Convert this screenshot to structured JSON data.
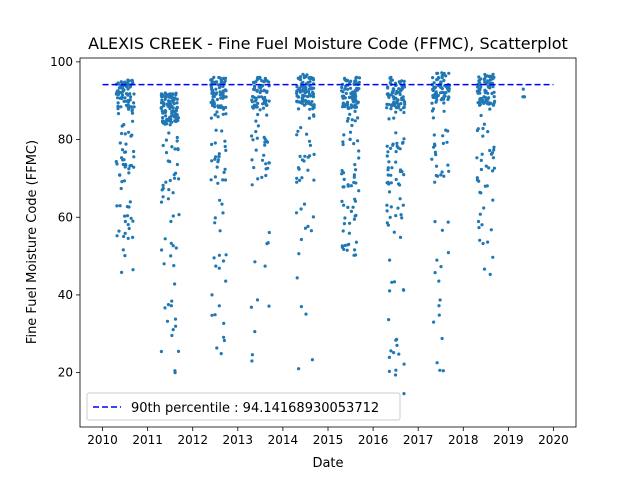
{
  "chart_data": {
    "type": "scatter",
    "title": "ALEXIS CREEK - Fine Fuel Moisture Code (FFMC), Scatterplot",
    "xlabel": "Date",
    "ylabel": "Fine Fuel Moisture Code (FFMC)",
    "xlim": [
      2009.5,
      2020.5
    ],
    "ylim": [
      6,
      101
    ],
    "x_ticks": [
      2010,
      2011,
      2012,
      2013,
      2014,
      2015,
      2016,
      2017,
      2018,
      2019,
      2020
    ],
    "y_ticks": [
      20,
      40,
      60,
      80,
      100
    ],
    "grid": false,
    "legend_position": "lower-left",
    "point_color": "#1f77b4",
    "reference_line": {
      "label": "90th percentile : 94.14168930053712",
      "value": 94.14168930053712,
      "x_range": [
        2010,
        2020
      ],
      "color": "#0000ff",
      "style": "dashed"
    },
    "seasons": [
      {
        "year": 2010,
        "x_range": [
          2010.3,
          2010.7
        ],
        "approx_points": 130,
        "min": 45.8,
        "max": 95.3
      },
      {
        "year": 2011,
        "x_range": [
          2011.3,
          2011.7
        ],
        "approx_points": 150,
        "min": 20.0,
        "max": 92.0
      },
      {
        "year": 2012,
        "x_range": [
          2012.4,
          2012.75
        ],
        "approx_points": 130,
        "min": 24.9,
        "max": 96.0
      },
      {
        "year": 2013,
        "x_range": [
          2013.3,
          2013.7
        ],
        "approx_points": 110,
        "min": 23.0,
        "max": 96.0
      },
      {
        "year": 2014,
        "x_range": [
          2014.3,
          2014.7
        ],
        "approx_points": 130,
        "min": 21.0,
        "max": 96.8
      },
      {
        "year": 2015,
        "x_range": [
          2015.3,
          2015.7
        ],
        "approx_points": 140,
        "min": 50.2,
        "max": 96.0
      },
      {
        "year": 2016,
        "x_range": [
          2016.3,
          2016.7
        ],
        "approx_points": 150,
        "min": 14.6,
        "max": 96.0
      },
      {
        "year": 2017,
        "x_range": [
          2017.3,
          2017.7
        ],
        "approx_points": 110,
        "min": 20.5,
        "max": 97.2
      },
      {
        "year": 2018,
        "x_range": [
          2018.3,
          2018.7
        ],
        "approx_points": 120,
        "min": 45.3,
        "max": 96.8
      },
      {
        "year": 2019,
        "x_range": [
          2019.32,
          2019.36
        ],
        "approx_points": 5,
        "min": 91.0,
        "max": 93.0
      }
    ]
  }
}
